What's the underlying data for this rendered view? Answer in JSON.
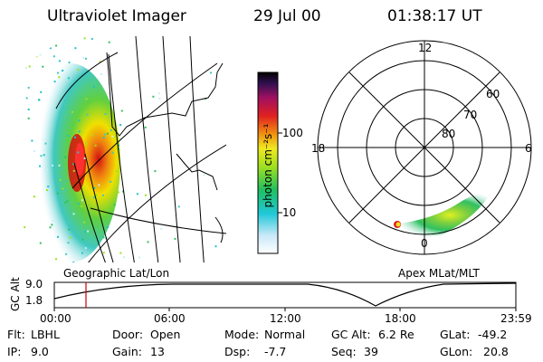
{
  "header": {
    "title": "Ultraviolet Imager",
    "date": "29 Jul 00",
    "time": "01:38:17 UT"
  },
  "colorbar": {
    "label": "photon cm⁻²s⁻¹",
    "ticks": [
      "100",
      "10"
    ]
  },
  "polar": {
    "mlt_labels": [
      "12",
      "18",
      "6",
      "0"
    ],
    "mlat_labels": [
      "60",
      "70",
      "80"
    ]
  },
  "projection_labels": {
    "left": "Geographic Lat/Lon",
    "right": "Apex MLat/MLT"
  },
  "timeline": {
    "ylabel": "GC Alt",
    "ymax": "9.0",
    "ymin": "1.8",
    "xticks": [
      "00:00",
      "06:00",
      "12:00",
      "18:00",
      "23:59"
    ],
    "current_marker": "01:38"
  },
  "info": {
    "flt_label": "Flt:",
    "flt_value": "LBHL",
    "ip_label": "IP:",
    "ip_value": "9.0",
    "door_label": "Door:",
    "door_value": "Open",
    "gain_label": "Gain:",
    "gain_value": "13",
    "mode_label": "Mode:",
    "mode_value": "Normal",
    "dsp_label": "Dsp:",
    "dsp_value": "-7.7",
    "gcalt_label": "GC Alt:",
    "gcalt_value": "6.2 Re",
    "seq_label": "Seq:",
    "seq_value": "39",
    "glat_label": "GLat:",
    "glat_value": "-49.2",
    "glon_label": "GLon:",
    "glon_value": "20.8"
  },
  "colors": {
    "marker": "#cc0000",
    "aurora_core": "#d21010",
    "aurora_mid": "#f0e000",
    "aurora_outer": "#30c060"
  }
}
